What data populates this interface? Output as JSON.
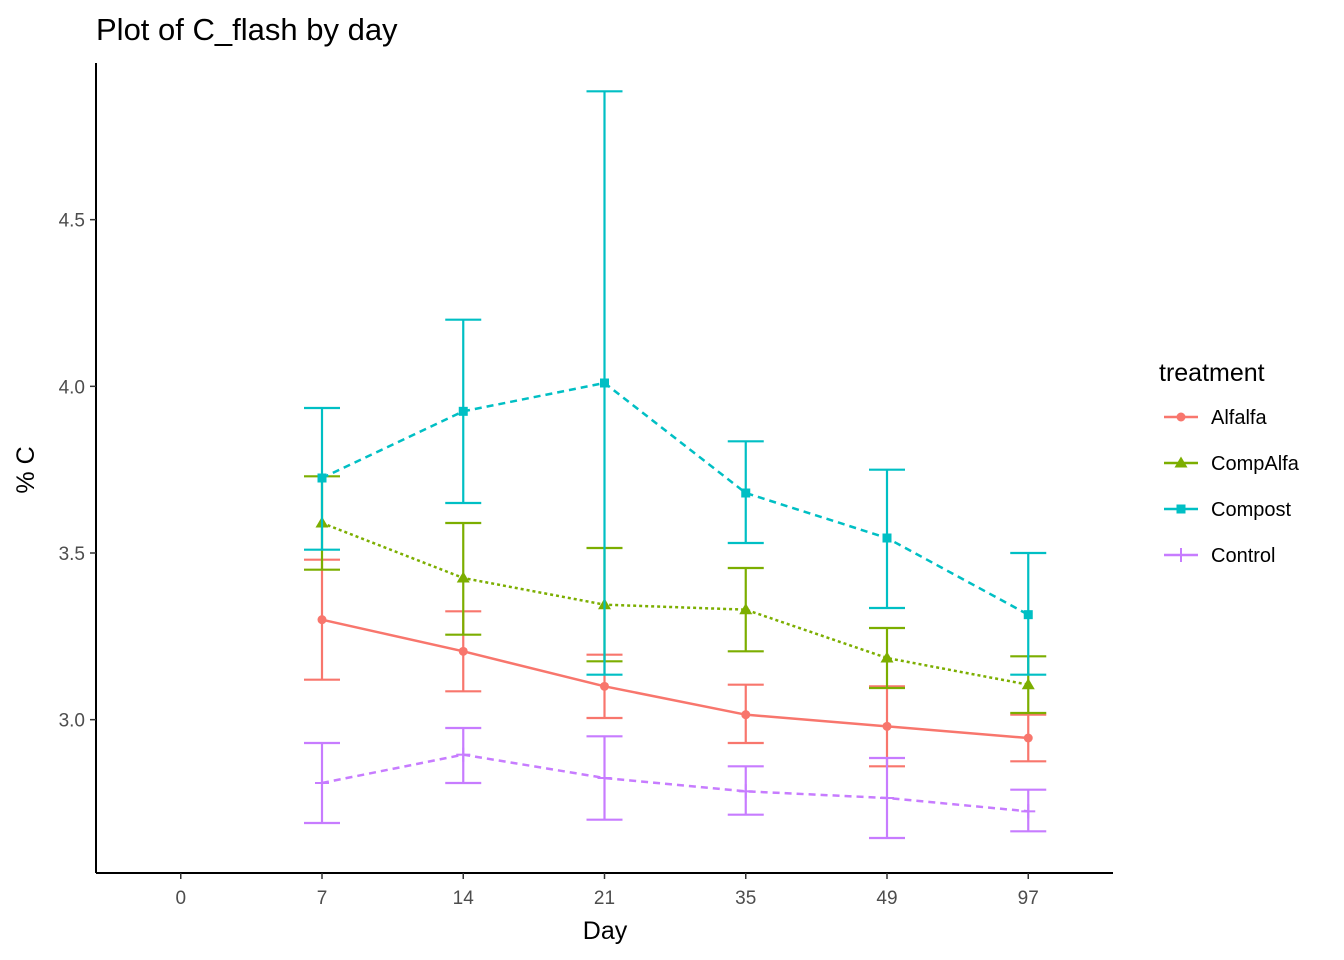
{
  "chart_data": {
    "type": "line",
    "title": "Plot of C_flash by day",
    "xlabel": "Day",
    "ylabel": "% C",
    "categories": [
      "0",
      "7",
      "14",
      "21",
      "35",
      "49",
      "97"
    ],
    "y_ticks": [
      "3.0",
      "3.5",
      "4.0",
      "4.5"
    ],
    "ylim": [
      2.54,
      4.97
    ],
    "grid": false,
    "error_bars": true,
    "legend": {
      "title": "treatment",
      "position": "right"
    },
    "series": [
      {
        "name": "Alfalfa",
        "color": "#F8766D",
        "marker": "circle",
        "dash": "solid",
        "x": [
          "7",
          "14",
          "21",
          "35",
          "49",
          "97"
        ],
        "values": [
          3.3,
          3.205,
          3.1,
          3.015,
          2.98,
          2.945
        ],
        "lower": [
          3.12,
          3.085,
          3.005,
          2.93,
          2.86,
          2.875
        ],
        "upper": [
          3.48,
          3.325,
          3.195,
          3.105,
          3.1,
          3.015
        ]
      },
      {
        "name": "CompAlfa",
        "color": "#7CAE00",
        "marker": "triangle",
        "dash": "dotted",
        "x": [
          "7",
          "14",
          "21",
          "35",
          "49",
          "97"
        ],
        "values": [
          3.59,
          3.425,
          3.345,
          3.33,
          3.185,
          3.105
        ],
        "lower": [
          3.45,
          3.255,
          3.175,
          3.205,
          3.095,
          3.02
        ],
        "upper": [
          3.73,
          3.59,
          3.515,
          3.455,
          3.275,
          3.19
        ]
      },
      {
        "name": "Compost",
        "color": "#00BFC4",
        "marker": "square",
        "dash": "dashed",
        "x": [
          "7",
          "14",
          "21",
          "35",
          "49",
          "97"
        ],
        "values": [
          3.725,
          3.925,
          4.01,
          3.68,
          3.545,
          3.315
        ],
        "lower": [
          3.51,
          3.65,
          3.135,
          3.53,
          3.335,
          3.135
        ],
        "upper": [
          3.935,
          4.2,
          4.885,
          3.835,
          3.75,
          3.5
        ]
      },
      {
        "name": "Control",
        "color": "#C77CFF",
        "marker": "plus",
        "dash": "dashed",
        "x": [
          "7",
          "14",
          "21",
          "35",
          "49",
          "97"
        ],
        "values": [
          2.81,
          2.895,
          2.825,
          2.785,
          2.765,
          2.725
        ],
        "lower": [
          2.69,
          2.81,
          2.7,
          2.715,
          2.645,
          2.665
        ],
        "upper": [
          2.93,
          2.975,
          2.95,
          2.86,
          2.885,
          2.79
        ]
      }
    ]
  }
}
